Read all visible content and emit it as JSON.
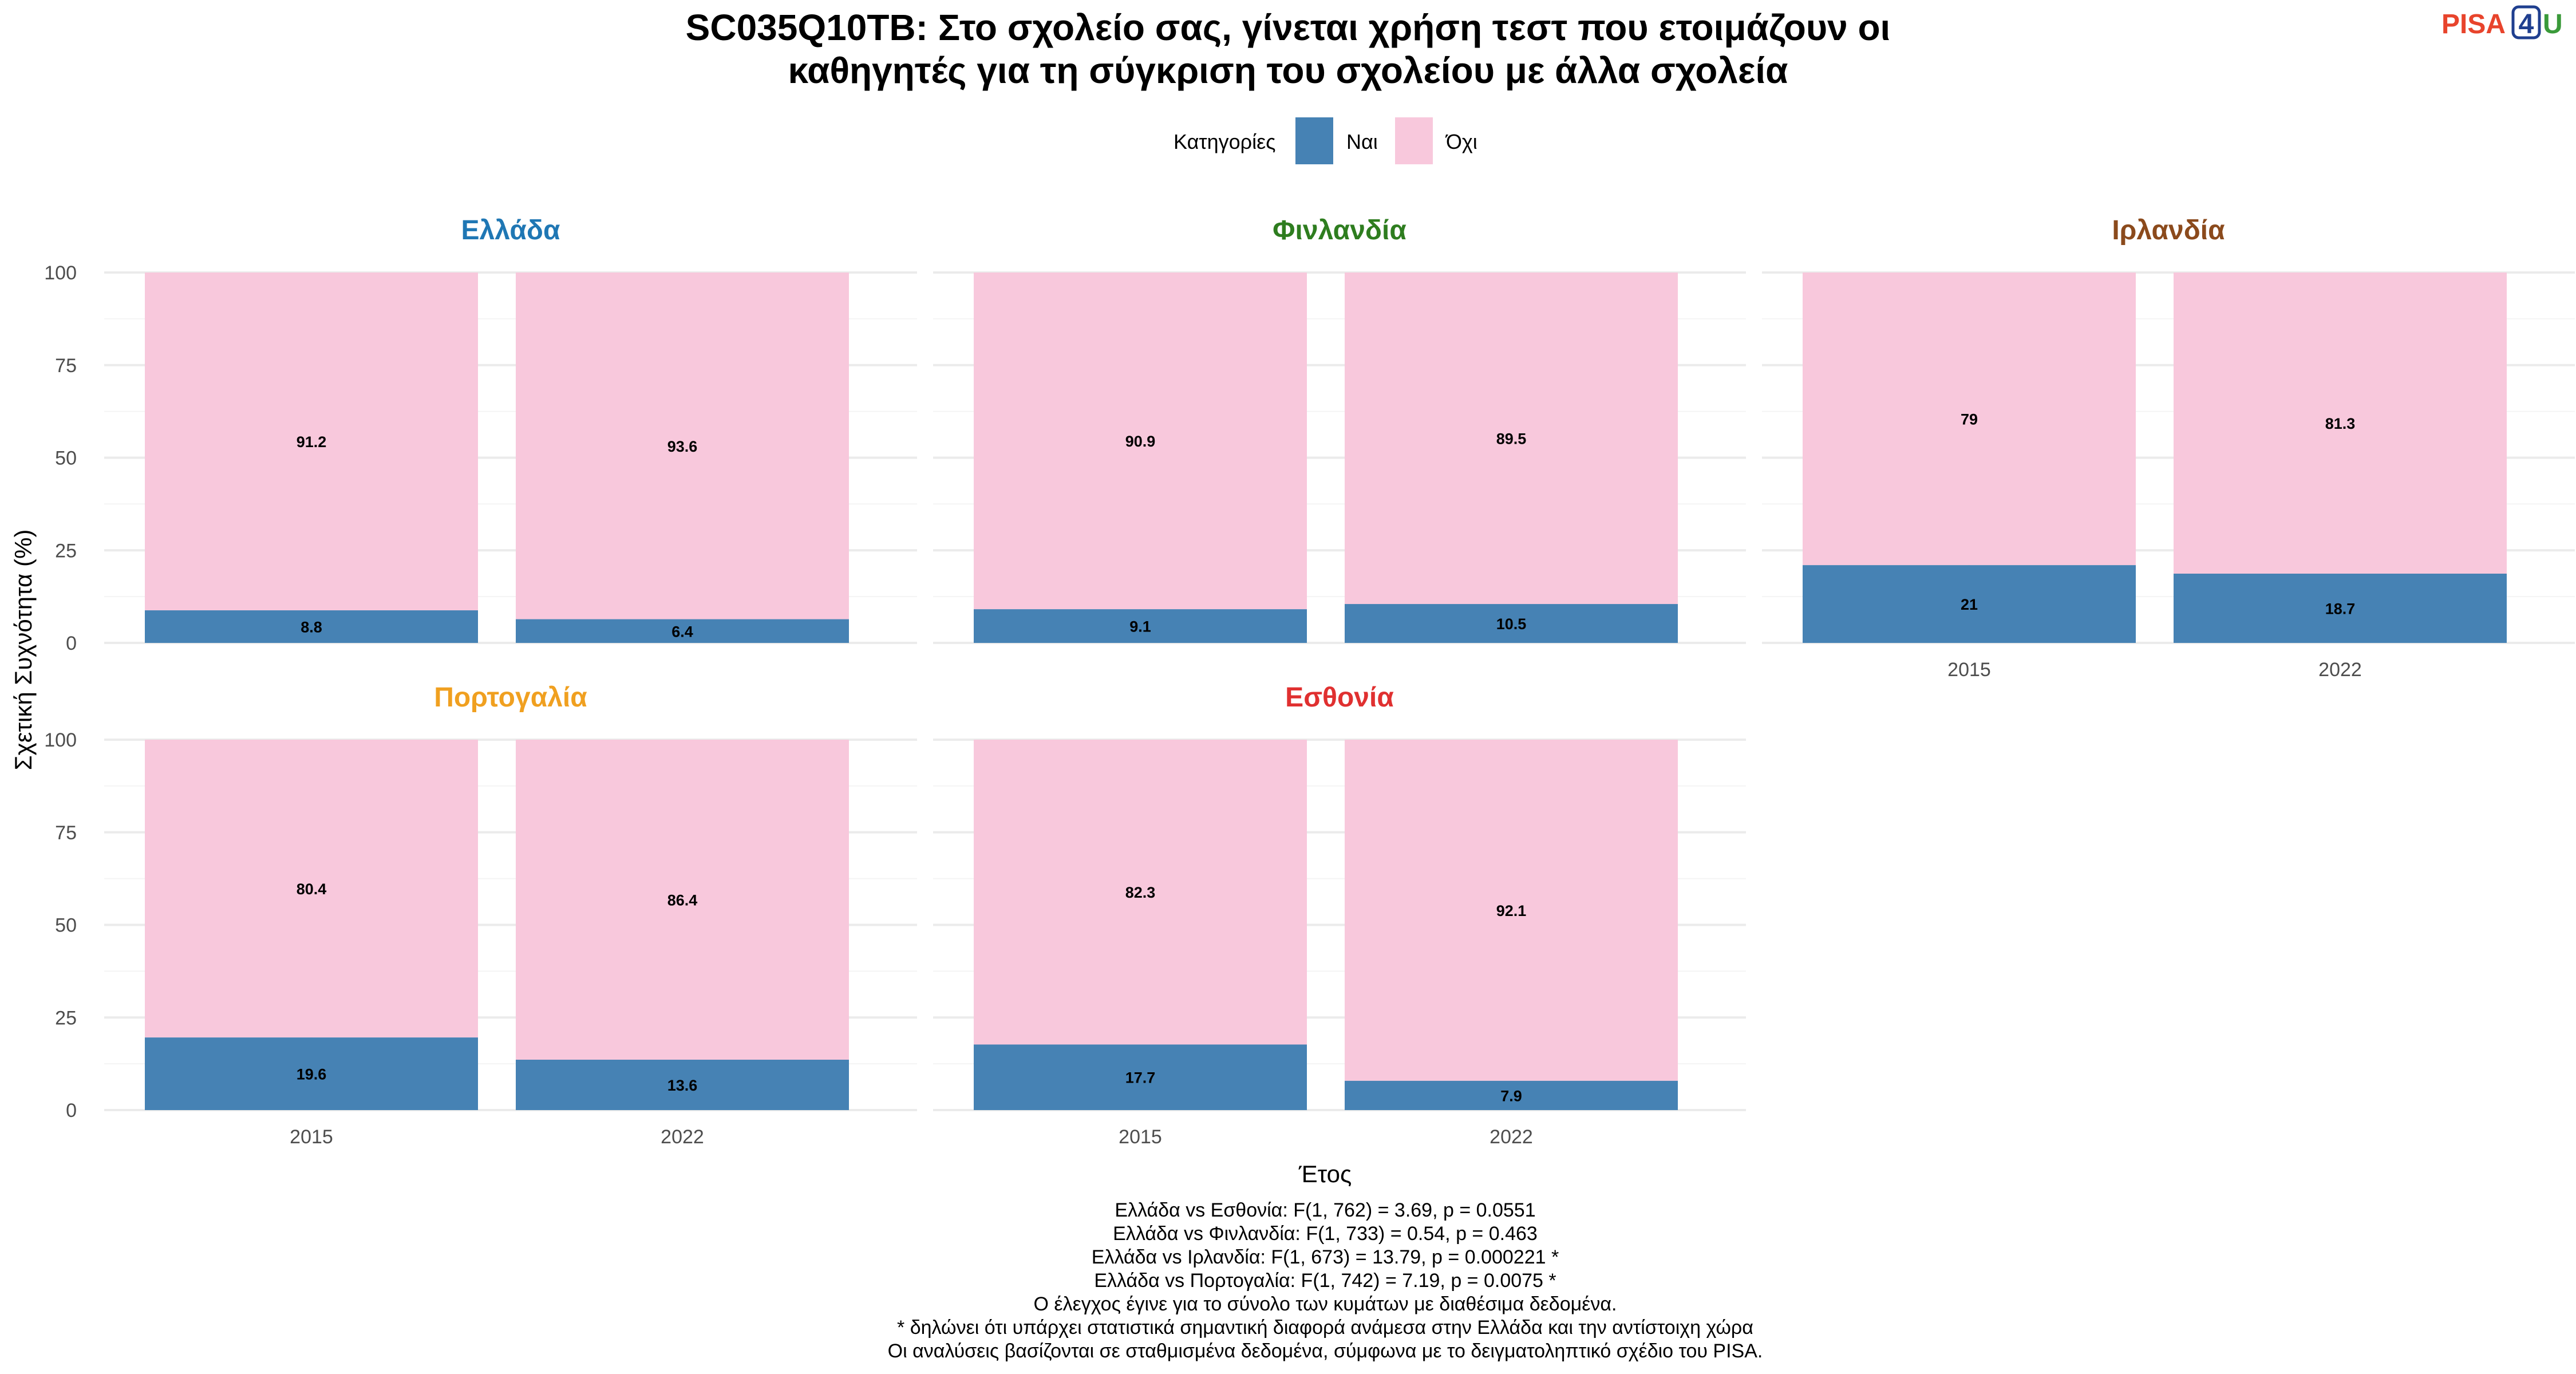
{
  "chart_data": {
    "type": "bar",
    "stacked": true,
    "title_line1": "SC035Q10TB: Στο σχολείο σας, γίνεται χρήση τεστ που ετοιμάζουν οι",
    "title_line2": "καθηγητές για τη σύγκριση του σχολείου με άλλα σχολεία",
    "xlabel": "Έτος",
    "ylabel": "Σχετική Συχνότητα (%)",
    "ylim": [
      0,
      100
    ],
    "yticks": [
      "0",
      "25",
      "50",
      "75",
      "100"
    ],
    "legend": {
      "title": "Κατηγορίες",
      "position": "top",
      "items": [
        {
          "name": "Ναι",
          "color": "#4682B4"
        },
        {
          "name": "Όχι",
          "color": "#F8C8DC"
        }
      ]
    },
    "facets": [
      {
        "country": "Ελλάδα",
        "color": "#1F77B4",
        "bars": [
          {
            "year": "2015",
            "nai": 8.8,
            "oxi": 91.2,
            "nai_label": "8.8",
            "oxi_label": "91.2"
          },
          {
            "year": "2022",
            "nai": 6.4,
            "oxi": 93.6,
            "nai_label": "6.4",
            "oxi_label": "93.6"
          }
        ]
      },
      {
        "country": "Φινλανδία",
        "color": "#2E7D1F",
        "bars": [
          {
            "year": "2015",
            "nai": 9.1,
            "oxi": 90.9,
            "nai_label": "9.1",
            "oxi_label": "90.9"
          },
          {
            "year": "2022",
            "nai": 10.5,
            "oxi": 89.5,
            "nai_label": "10.5",
            "oxi_label": "89.5"
          }
        ]
      },
      {
        "country": "Ιρλανδία",
        "color": "#8B4A1C",
        "bars": [
          {
            "year": "2015",
            "nai": 21,
            "oxi": 79,
            "nai_label": "21",
            "oxi_label": "79"
          },
          {
            "year": "2022",
            "nai": 18.7,
            "oxi": 81.3,
            "nai_label": "18.7",
            "oxi_label": "81.3"
          }
        ]
      },
      {
        "country": "Πορτογαλία",
        "color": "#F0A020",
        "bars": [
          {
            "year": "2015",
            "nai": 19.6,
            "oxi": 80.4,
            "nai_label": "19.6",
            "oxi_label": "80.4"
          },
          {
            "year": "2022",
            "nai": 13.6,
            "oxi": 86.4,
            "nai_label": "13.6",
            "oxi_label": "86.4"
          }
        ]
      },
      {
        "country": "Εσθονία",
        "color": "#E03030",
        "bars": [
          {
            "year": "2015",
            "nai": 17.7,
            "oxi": 82.3,
            "nai_label": "17.7",
            "oxi_label": "82.3"
          },
          {
            "year": "2022",
            "nai": 7.9,
            "oxi": 92.1,
            "nai_label": "7.9",
            "oxi_label": "92.1"
          }
        ]
      }
    ],
    "caption_lines": [
      "Ελλάδα vs Εσθονία: F(1, 762) = 3.69, p = 0.0551",
      "Ελλάδα vs Φινλανδία: F(1, 733) = 0.54, p = 0.463",
      "Ελλάδα vs Ιρλανδία: F(1, 673) = 13.79, p = 0.000221 *",
      "Ελλάδα vs Πορτογαλία: F(1, 742) = 7.19, p = 0.0075 *",
      "Ο έλεγχος έγινε για το σύνολο των κυμάτων με διαθέσιμα δεδομένα.",
      "* δηλώνει ότι υπάρχει στατιστικά σημαντική διαφορά ανάμεσα στην Ελλάδα και την αντίστοιχη χώρα",
      "Οι αναλύσεις βασίζονται σε σταθμισμένα δεδομένα, σύμφωνα με το δειγματοληπτικό σχέδιο του PISA."
    ]
  },
  "logo": {
    "part1": "PISA",
    "part2": "4",
    "part3": "U"
  }
}
